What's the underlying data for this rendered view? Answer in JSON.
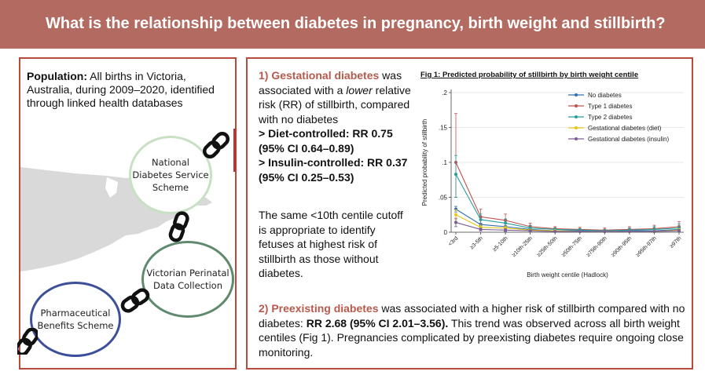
{
  "banner": {
    "title": "What is the relationship between diabetes in pregnancy, birth weight and stillbirth?"
  },
  "left": {
    "population_label": "Population:",
    "population_text": " All births in Victoria, Australia, during 2009–2020, identified through linked health databases",
    "circles": {
      "nds": "National Diabetes Service Scheme",
      "vpd": "Victorian Perinatal Data Collection",
      "pbs": "Pharmaceutical Benefits Scheme"
    }
  },
  "right": {
    "gdm": {
      "num": "1) ",
      "term": "Gestational diabetes",
      "t1": " was associated with a ",
      "lower": "lower",
      "t2": " relative risk (RR) of stillbirth, compared with no diabetes",
      "diet": "> Diet-controlled: RR 0.75 (95% CI 0.64–0.89)",
      "insulin": "> Insulin-controlled: RR 0.37 (95% CI 0.25–0.53)"
    },
    "centile_text": "The same <10th centile cutoff is appropriate to identify fetuses at highest risk of stillbirth as those without diabetes.",
    "pre": {
      "num": "2)  ",
      "term": "Preexisting diabetes",
      "t1": " was associated with a higher risk of stillbirth compared with no diabetes: ",
      "rr": "RR 2.68 (95% CI 2.01–3.56).",
      "t2": " This trend was observed across all birth weight centiles (Fig 1). Pregnancies complicated by preexisting diabetes require ongoing close monitoring."
    }
  },
  "chart_data": {
    "type": "line",
    "title": "Fig 1: Predicted probability of stillbirth by birth weight centile",
    "xlabel": "Birth weight centile (Hadlock)",
    "ylabel": "Predicted probability of stillbirth",
    "categories": [
      "<3rd",
      "≥3-5th",
      "≥5-10th",
      "≥10th-25th",
      "≥25th-50th",
      "≥50th-75th",
      "≥75th-90th",
      "≥90th-95th",
      "≥95th-97th",
      "≥97th"
    ],
    "yticks": [
      "0",
      ".05",
      ".1",
      ".15",
      ".2"
    ],
    "ylim": [
      0,
      0.2
    ],
    "legend_position": "top-right",
    "series": [
      {
        "name": "No diabetes",
        "color": "#2f6fb5",
        "values": [
          0.033,
          0.011,
          0.008,
          0.004,
          0.002,
          0.002,
          0.001,
          0.002,
          0.002,
          0.004
        ],
        "ci_low": [
          0.029,
          0.009,
          0.007,
          0.003,
          0.002,
          0.001,
          0.001,
          0.001,
          0.001,
          0.003
        ],
        "ci_high": [
          0.037,
          0.013,
          0.009,
          0.005,
          0.003,
          0.002,
          0.002,
          0.003,
          0.003,
          0.005
        ]
      },
      {
        "name": "Type 1 diabetes",
        "color": "#c0504d",
        "values": [
          0.1,
          0.022,
          0.017,
          0.008,
          0.005,
          0.004,
          0.003,
          0.004,
          0.005,
          0.008
        ],
        "ci_low": [
          0.05,
          0.012,
          0.009,
          0.004,
          0.002,
          0.002,
          0.001,
          0.001,
          0.001,
          0.003
        ],
        "ci_high": [
          0.17,
          0.033,
          0.026,
          0.013,
          0.008,
          0.007,
          0.006,
          0.008,
          0.01,
          0.015
        ]
      },
      {
        "name": "Type 2 diabetes",
        "color": "#2a9d9d",
        "values": [
          0.083,
          0.018,
          0.013,
          0.006,
          0.004,
          0.003,
          0.002,
          0.003,
          0.004,
          0.006
        ],
        "ci_low": [
          0.05,
          0.01,
          0.007,
          0.003,
          0.002,
          0.001,
          0.001,
          0.001,
          0.001,
          0.002
        ],
        "ci_high": [
          0.11,
          0.026,
          0.019,
          0.01,
          0.006,
          0.005,
          0.004,
          0.006,
          0.008,
          0.012
        ]
      },
      {
        "name": "Gestational diabetes (diet)",
        "color": "#e8c619",
        "values": [
          0.025,
          0.007,
          0.006,
          0.003,
          0.002,
          0.001,
          0.001,
          0.001,
          0.001,
          0.003
        ],
        "ci_low": [
          0.018,
          0.004,
          0.004,
          0.002,
          0.001,
          0.001,
          0.0,
          0.0,
          0.0,
          0.001
        ],
        "ci_high": [
          0.032,
          0.01,
          0.008,
          0.004,
          0.003,
          0.002,
          0.002,
          0.002,
          0.003,
          0.005
        ]
      },
      {
        "name": "Gestational diabetes (insulin)",
        "color": "#7b5c95",
        "values": [
          0.014,
          0.004,
          0.003,
          0.002,
          0.001,
          0.001,
          0.001,
          0.001,
          0.001,
          0.002
        ],
        "ci_low": [
          0.008,
          0.002,
          0.001,
          0.001,
          0.0,
          0.0,
          0.0,
          0.0,
          0.0,
          0.001
        ],
        "ci_high": [
          0.02,
          0.006,
          0.005,
          0.003,
          0.002,
          0.002,
          0.002,
          0.002,
          0.002,
          0.004
        ]
      }
    ]
  }
}
